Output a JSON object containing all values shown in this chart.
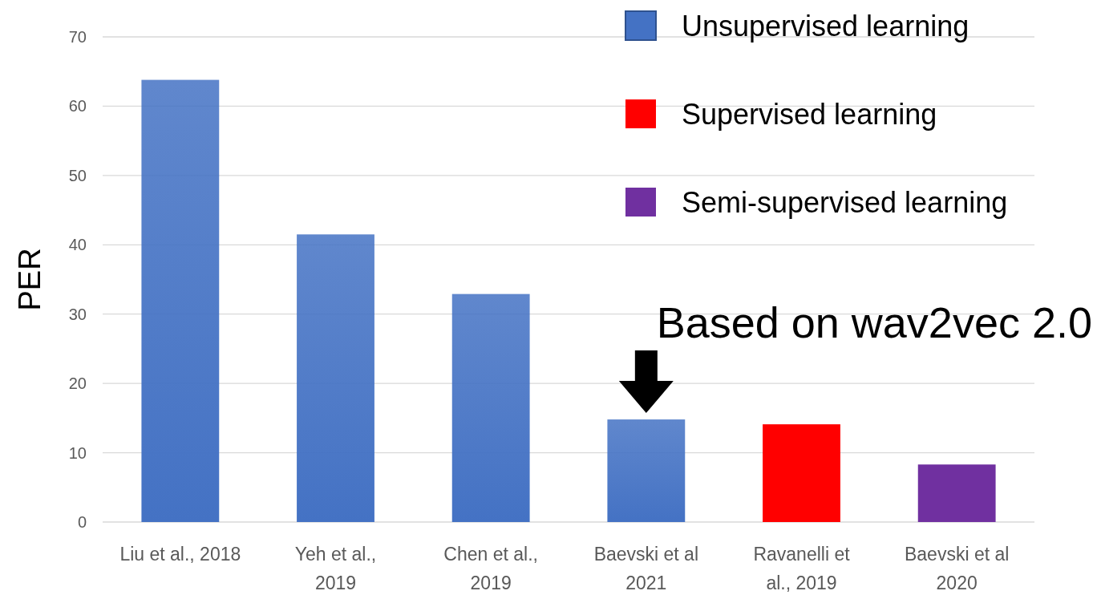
{
  "chart_data": {
    "type": "bar",
    "stacked": true,
    "ylabel": "PER",
    "categories": [
      "Liu et al., 2018",
      "Yeh et al.,\n2019",
      "Chen et al.,\n2019",
      "Baevski et al\n2021",
      "Ravanelli et\nal., 2019",
      "Baevski et al\n2020"
    ],
    "series": [
      {
        "name": "Unsupervised learning",
        "color": "#4472c4",
        "values": [
          63.8,
          41.5,
          32.9,
          14.8,
          null,
          null
        ]
      },
      {
        "name": "Supervised learning",
        "color": "#ff0000",
        "values": [
          null,
          null,
          null,
          null,
          14.1,
          null
        ]
      },
      {
        "name": "Semi-supervised learning",
        "color": "#7030a0",
        "values": [
          null,
          null,
          null,
          null,
          null,
          8.3
        ]
      }
    ],
    "ylim": [
      0,
      70
    ],
    "yticks": [
      0,
      10,
      20,
      30,
      40,
      50,
      60,
      70
    ],
    "grid": "y",
    "legend": "top right",
    "annotations": [
      {
        "text": "Based on wav2vec 2.0",
        "x": "Baevski et al\n2021",
        "y": 14.8
      }
    ]
  }
}
